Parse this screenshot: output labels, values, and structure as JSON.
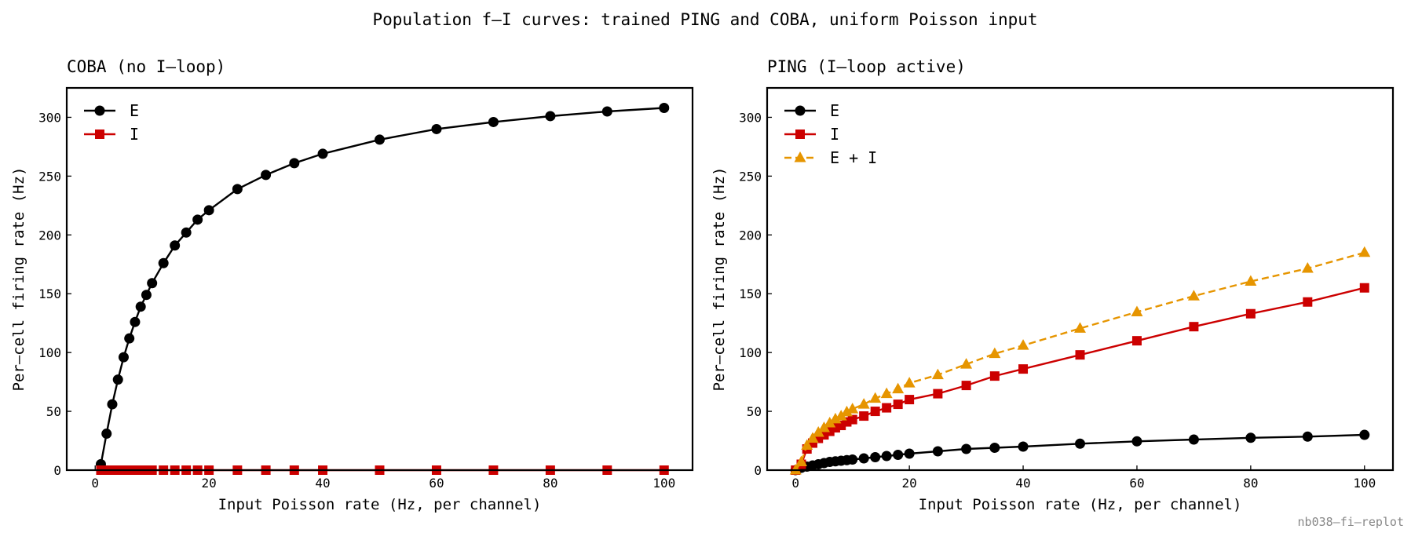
{
  "figure": {
    "suptitle": "Population f–I curves: trained PING and COBA, uniform Poisson input",
    "footer": "nb038–fi–replot"
  },
  "colors": {
    "E": "#000000",
    "I": "#cc0000",
    "EI": "#e69500"
  },
  "chart_data": [
    {
      "type": "line",
      "title": "COBA (no I–loop)",
      "xlabel": "Input Poisson rate (Hz, per channel)",
      "ylabel": "Per–cell firing rate (Hz)",
      "xlim": [
        -5,
        105
      ],
      "ylim": [
        0,
        325
      ],
      "xticks": [
        "0",
        "20",
        "40",
        "60",
        "80",
        "100"
      ],
      "yticks": [
        "0",
        "50",
        "100",
        "150",
        "200",
        "250",
        "300"
      ],
      "grid": false,
      "legend_position": "upper left",
      "x": [
        1,
        2,
        3,
        4,
        5,
        6,
        7,
        8,
        9,
        10,
        12,
        14,
        16,
        18,
        20,
        25,
        30,
        35,
        40,
        50,
        60,
        70,
        80,
        90,
        100
      ],
      "series": [
        {
          "name": "E",
          "color": "#000000",
          "marker": "circle",
          "dash": "solid",
          "values": [
            5,
            31,
            56,
            77,
            96,
            112,
            126,
            139,
            149,
            159,
            176,
            191,
            202,
            213,
            221,
            239,
            251,
            261,
            269,
            281,
            290,
            296,
            301,
            305,
            308
          ]
        },
        {
          "name": "I",
          "color": "#cc0000",
          "marker": "square",
          "dash": "solid",
          "values": [
            0,
            0,
            0,
            0,
            0,
            0,
            0,
            0,
            0,
            0,
            0,
            0,
            0,
            0,
            0,
            0,
            0,
            0,
            0,
            0,
            0,
            0,
            0,
            0,
            0
          ]
        }
      ]
    },
    {
      "type": "line",
      "title": "PING (I–loop active)",
      "xlabel": "Input Poisson rate (Hz, per channel)",
      "ylabel": "Per–cell firing rate (Hz)",
      "xlim": [
        -5,
        105
      ],
      "ylim": [
        0,
        325
      ],
      "xticks": [
        "0",
        "20",
        "40",
        "60",
        "80",
        "100"
      ],
      "yticks": [
        "0",
        "50",
        "100",
        "150",
        "200",
        "250",
        "300"
      ],
      "grid": false,
      "legend_position": "upper left",
      "x": [
        0,
        1,
        2,
        3,
        4,
        5,
        6,
        7,
        8,
        9,
        10,
        12,
        14,
        16,
        18,
        20,
        25,
        30,
        35,
        40,
        50,
        60,
        70,
        80,
        90,
        100
      ],
      "series": [
        {
          "name": "E",
          "color": "#000000",
          "marker": "circle",
          "dash": "solid",
          "values": [
            0,
            2,
            3,
            4,
            5,
            6,
            7,
            7.5,
            8,
            8.5,
            9,
            10,
            11,
            12,
            13,
            14,
            16,
            18,
            19,
            20,
            22.5,
            24.5,
            26,
            27.5,
            28.5,
            30
          ]
        },
        {
          "name": "I",
          "color": "#cc0000",
          "marker": "square",
          "dash": "solid",
          "values": [
            0,
            5,
            18,
            23,
            27,
            30,
            33,
            36,
            38,
            41,
            43,
            46,
            50,
            53,
            56,
            60,
            65,
            72,
            80,
            86,
            98,
            110,
            122,
            133,
            143,
            155
          ]
        },
        {
          "name": "E + I",
          "color": "#e69500",
          "marker": "triangle",
          "dash": "dashed",
          "values": [
            0,
            7,
            21,
            27,
            32,
            36,
            40,
            43.5,
            46,
            49.5,
            52,
            56,
            61,
            65,
            69,
            74,
            81,
            90,
            99,
            106,
            120.5,
            134.5,
            148,
            160.5,
            171.5,
            185
          ]
        }
      ]
    }
  ]
}
